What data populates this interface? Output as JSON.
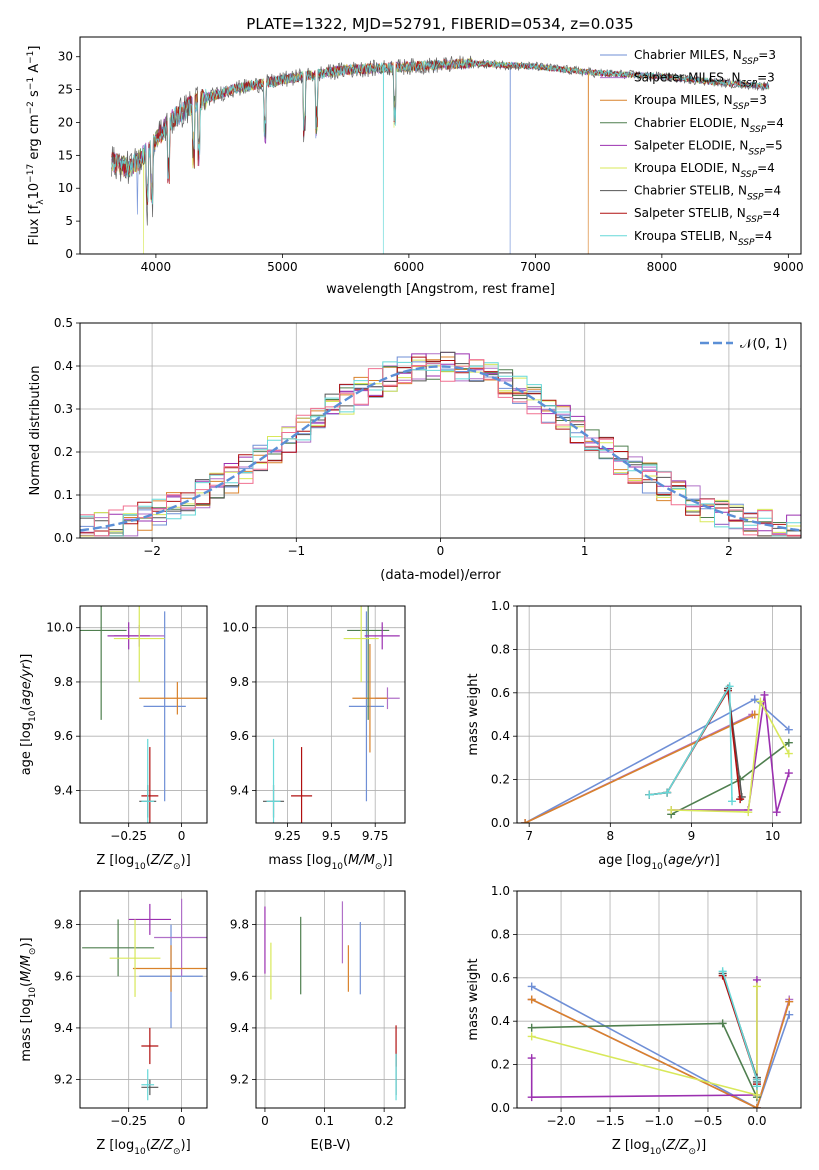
{
  "title": "PLATE=1322, MJD=52791, FIBERID=0534, z=0.035",
  "colors": {
    "Chabrier MILES": "#6f8fd6",
    "Salpeter MILES": "#b070c8",
    "Kroupa MILES": "#d9822b",
    "Chabrier ELODIE": "#4f7f4f",
    "Salpeter ELODIE": "#9b30b0",
    "Kroupa ELODIE": "#d8e85a",
    "Chabrier STELIB": "#555555",
    "Salpeter STELIB": "#b01010",
    "Kroupa STELIB": "#66d8d8",
    "normal": "#5b8fd6",
    "extra_hist": "#f07090"
  },
  "chart_data": [
    {
      "type": "line",
      "name": "spectrum",
      "title": "PLATE=1322, MJD=52791, FIBERID=0534, z=0.035",
      "xlabel": "wavelength [Angstrom, rest frame]",
      "ylabel": "Flux [f_λ 10^-17 erg cm^-2 s^-1 A^-1]",
      "xlim": [
        3400,
        9100
      ],
      "ylim": [
        0,
        33
      ],
      "xticks": [
        4000,
        5000,
        6000,
        7000,
        8000,
        9000
      ],
      "yticks": [
        0,
        5,
        10,
        15,
        20,
        25,
        30
      ],
      "grid": false,
      "legend_position": "right",
      "legend": [
        {
          "label": "Chabrier MILES, N",
          "sub": "SSP",
          "post": "=3"
        },
        {
          "label": "Salpeter MILES, N",
          "sub": "SSP",
          "post": "=3"
        },
        {
          "label": "Kroupa MILES, N",
          "sub": "SSP",
          "post": "=3"
        },
        {
          "label": "Chabrier ELODIE, N",
          "sub": "SSP",
          "post": "=4"
        },
        {
          "label": "Salpeter ELODIE, N",
          "sub": "SSP",
          "post": "=5"
        },
        {
          "label": "Kroupa ELODIE, N",
          "sub": "SSP",
          "post": "=4"
        },
        {
          "label": "Chabrier STELIB, N",
          "sub": "SSP",
          "post": "=4"
        },
        {
          "label": "Salpeter STELIB, N",
          "sub": "SSP",
          "post": "=4"
        },
        {
          "label": "Kroupa STELIB, N",
          "sub": "SSP",
          "post": "=4"
        }
      ],
      "continuum_anchors": [
        [
          3650,
          14
        ],
        [
          3800,
          13
        ],
        [
          3950,
          16
        ],
        [
          4100,
          20
        ],
        [
          4300,
          23
        ],
        [
          4600,
          25
        ],
        [
          5000,
          26.5
        ],
        [
          5500,
          28
        ],
        [
          6000,
          28.5
        ],
        [
          6500,
          29
        ],
        [
          7000,
          28.5
        ],
        [
          7500,
          27.5
        ],
        [
          8000,
          27
        ],
        [
          8500,
          26
        ],
        [
          8850,
          25.5
        ]
      ],
      "drops": [
        {
          "series": "Kroupa MILES",
          "x": 7420,
          "to": 0
        },
        {
          "series": "Kroupa STELIB",
          "x": 5800,
          "to": 0
        },
        {
          "series": "Chabrier MILES",
          "x": 6800,
          "to": 0
        },
        {
          "series": "Kroupa ELODIE",
          "x": 3900,
          "to": 0
        }
      ]
    },
    {
      "type": "bar",
      "name": "residual-histogram",
      "xlabel": "(data-model)/error",
      "ylabel": "Normed distribution",
      "xlim": [
        -2.5,
        2.5
      ],
      "ylim": [
        0,
        0.5
      ],
      "xticks": [
        -2,
        -1,
        0,
        1,
        2
      ],
      "yticks": [
        0.0,
        0.1,
        0.2,
        0.3,
        0.4,
        0.5
      ],
      "grid": true,
      "bin_width": 0.1,
      "legend_position": "top-right",
      "legend_label": "N(0,1)",
      "series_peaks": [
        0.46,
        0.45,
        0.48,
        0.44,
        0.43,
        0.42,
        0.45,
        0.41,
        0.44
      ]
    },
    {
      "type": "scatter",
      "name": "age-vs-Z",
      "xlabel": "Z [log10(Z/Z_sun)]",
      "ylabel": "age [log10(age/yr)]",
      "xlim": [
        -0.48,
        0.12
      ],
      "ylim": [
        9.28,
        10.08
      ],
      "xticks": [
        -0.25,
        0.0
      ],
      "yticks": [
        9.4,
        9.6,
        9.8,
        10.0
      ],
      "grid": true,
      "points": [
        {
          "series": "Chabrier MILES",
          "x": -0.08,
          "y": 9.71,
          "xerr": 0.1,
          "yerr": 0.35
        },
        {
          "series": "Salpeter MILES",
          "x": -0.2,
          "y": 9.97,
          "xerr": 0.12,
          "yerr": 0.04
        },
        {
          "series": "Kroupa MILES",
          "x": -0.02,
          "y": 9.74,
          "xerr": 0.18,
          "yerr": 0.06
        },
        {
          "series": "Chabrier ELODIE",
          "x": -0.38,
          "y": 9.99,
          "xerr": 0.12,
          "yerr": 0.33
        },
        {
          "series": "Salpeter ELODIE",
          "x": -0.25,
          "y": 9.97,
          "xerr": 0.1,
          "yerr": 0.05
        },
        {
          "series": "Kroupa ELODIE",
          "x": -0.2,
          "y": 9.96,
          "xerr": 0.12,
          "yerr": 0.16
        },
        {
          "series": "Chabrier STELIB",
          "x": -0.16,
          "y": 9.36,
          "xerr": 0.04,
          "yerr": 0.06
        },
        {
          "series": "Salpeter STELIB",
          "x": -0.15,
          "y": 9.38,
          "xerr": 0.04,
          "yerr": 0.18
        },
        {
          "series": "Kroupa STELIB",
          "x": -0.16,
          "y": 9.36,
          "xerr": 0.03,
          "yerr": 0.23
        }
      ]
    },
    {
      "type": "scatter",
      "name": "age-vs-mass",
      "xlabel": "mass [log10(M/M_sun)]",
      "ylabel": "",
      "xlim": [
        9.07,
        9.92
      ],
      "ylim": [
        9.28,
        10.08
      ],
      "xticks": [
        9.25,
        9.5,
        9.75
      ],
      "yticks": [
        9.4,
        9.6,
        9.8,
        10.0
      ],
      "grid": true,
      "points": [
        {
          "series": "Chabrier MILES",
          "x": 9.7,
          "y": 9.71,
          "xerr": 0.1,
          "yerr": 0.35
        },
        {
          "series": "Salpeter MILES",
          "x": 9.82,
          "y": 9.74,
          "xerr": 0.07,
          "yerr": 0.04
        },
        {
          "series": "Kroupa MILES",
          "x": 9.72,
          "y": 9.74,
          "xerr": 0.1,
          "yerr": 0.2
        },
        {
          "series": "Chabrier ELODIE",
          "x": 9.71,
          "y": 9.99,
          "xerr": 0.12,
          "yerr": 0.33
        },
        {
          "series": "Salpeter ELODIE",
          "x": 9.79,
          "y": 9.97,
          "xerr": 0.1,
          "yerr": 0.05
        },
        {
          "series": "Kroupa ELODIE",
          "x": 9.67,
          "y": 9.96,
          "xerr": 0.1,
          "yerr": 0.16
        },
        {
          "series": "Chabrier STELIB",
          "x": 9.17,
          "y": 9.36,
          "xerr": 0.06,
          "yerr": 0.06
        },
        {
          "series": "Salpeter STELIB",
          "x": 9.33,
          "y": 9.38,
          "xerr": 0.06,
          "yerr": 0.18
        },
        {
          "series": "Kroupa STELIB",
          "x": 9.17,
          "y": 9.36,
          "xerr": 0.04,
          "yerr": 0.23
        }
      ]
    },
    {
      "type": "line",
      "name": "mass-weight-vs-age",
      "xlabel": "age [log10(age/yr)]",
      "ylabel": "mass weight",
      "xlim": [
        6.85,
        10.35
      ],
      "ylim": [
        0,
        1
      ],
      "xticks": [
        7,
        8,
        9,
        10
      ],
      "yticks": [
        0.0,
        0.2,
        0.4,
        0.6,
        0.8,
        1.0
      ],
      "grid": true,
      "series": [
        {
          "name": "Chabrier MILES",
          "x": [
            6.95,
            9.78,
            10.2
          ],
          "y": [
            0.0,
            0.57,
            0.43
          ]
        },
        {
          "name": "Salpeter MILES",
          "x": [
            6.95,
            9.75
          ],
          "y": [
            0.0,
            0.5
          ]
        },
        {
          "name": "Kroupa MILES",
          "x": [
            6.95,
            9.78
          ],
          "y": [
            0.0,
            0.5
          ]
        },
        {
          "name": "Chabrier ELODIE",
          "x": [
            8.75,
            9.6,
            10.2
          ],
          "y": [
            0.04,
            0.2,
            0.37
          ]
        },
        {
          "name": "Salpeter ELODIE",
          "x": [
            8.75,
            9.7,
            9.9,
            10.05,
            10.2
          ],
          "y": [
            0.06,
            0.06,
            0.59,
            0.05,
            0.23
          ]
        },
        {
          "name": "Kroupa ELODIE",
          "x": [
            8.75,
            9.7,
            9.85,
            10.2
          ],
          "y": [
            0.06,
            0.05,
            0.56,
            0.32
          ]
        },
        {
          "name": "Chabrier STELIB",
          "x": [
            8.48,
            8.7,
            9.45,
            9.62
          ],
          "y": [
            0.13,
            0.14,
            0.62,
            0.12
          ]
        },
        {
          "name": "Salpeter STELIB",
          "x": [
            8.48,
            8.7,
            9.45,
            9.6
          ],
          "y": [
            0.13,
            0.14,
            0.61,
            0.11
          ]
        },
        {
          "name": "Kroupa STELIB",
          "x": [
            8.48,
            8.7,
            9.47,
            9.5
          ],
          "y": [
            0.13,
            0.14,
            0.63,
            0.1
          ]
        }
      ]
    },
    {
      "type": "scatter",
      "name": "mass-vs-Z",
      "xlabel": "Z [log10(Z/Z_sun)]",
      "ylabel": "mass [log10(M/M_sun)]",
      "xlim": [
        -0.48,
        0.12
      ],
      "ylim": [
        9.09,
        9.93
      ],
      "xticks": [
        -0.25,
        0.0
      ],
      "yticks": [
        9.2,
        9.4,
        9.6,
        9.8
      ],
      "grid": true,
      "points": [
        {
          "series": "Chabrier MILES",
          "x": -0.05,
          "y": 9.6,
          "xerr": 0.15,
          "yerr": 0.2
        },
        {
          "series": "Salpeter MILES",
          "x": 0.0,
          "y": 9.75,
          "xerr": 0.13,
          "yerr": 0.15
        },
        {
          "series": "Kroupa MILES",
          "x": -0.05,
          "y": 9.63,
          "xerr": 0.18,
          "yerr": 0.09
        },
        {
          "series": "Chabrier ELODIE",
          "x": -0.3,
          "y": 9.71,
          "xerr": 0.17,
          "yerr": 0.11
        },
        {
          "series": "Salpeter ELODIE",
          "x": -0.15,
          "y": 9.82,
          "xerr": 0.1,
          "yerr": 0.06
        },
        {
          "series": "Kroupa ELODIE",
          "x": -0.22,
          "y": 9.67,
          "xerr": 0.12,
          "yerr": 0.15
        },
        {
          "series": "Chabrier STELIB",
          "x": -0.15,
          "y": 9.17,
          "xerr": 0.04,
          "yerr": 0.03
        },
        {
          "series": "Salpeter STELIB",
          "x": -0.15,
          "y": 9.33,
          "xerr": 0.04,
          "yerr": 0.07
        },
        {
          "series": "Kroupa STELIB",
          "x": -0.16,
          "y": 9.18,
          "xerr": 0.03,
          "yerr": 0.06
        }
      ]
    },
    {
      "type": "scatter",
      "name": "mass-vs-EBV",
      "xlabel": "E(B-V)",
      "ylabel": "",
      "xlim": [
        -0.015,
        0.235
      ],
      "ylim": [
        9.09,
        9.93
      ],
      "xticks": [
        0.0,
        0.1,
        0.2
      ],
      "yticks": [
        9.2,
        9.4,
        9.6,
        9.8
      ],
      "grid": true,
      "points": [
        {
          "series": "Chabrier MILES",
          "x": 0.16,
          "y": 9.67,
          "yerr": 0.14
        },
        {
          "series": "Salpeter MILES",
          "x": 0.13,
          "y": 9.77,
          "yerr": 0.12
        },
        {
          "series": "Kroupa MILES",
          "x": 0.14,
          "y": 9.63,
          "yerr": 0.09
        },
        {
          "series": "Chabrier ELODIE",
          "x": 0.06,
          "y": 9.68,
          "yerr": 0.15
        },
        {
          "series": "Salpeter ELODIE",
          "x": 0.0,
          "y": 9.74,
          "yerr": 0.13
        },
        {
          "series": "Kroupa ELODIE",
          "x": 0.01,
          "y": 9.62,
          "yerr": 0.11
        },
        {
          "series": "Chabrier STELIB",
          "x": 0.22,
          "y": 9.22,
          "yerr": 0.08
        },
        {
          "series": "Salpeter STELIB",
          "x": 0.22,
          "y": 9.33,
          "yerr": 0.08
        },
        {
          "series": "Kroupa STELIB",
          "x": 0.22,
          "y": 9.21,
          "yerr": 0.09
        }
      ]
    },
    {
      "type": "line",
      "name": "mass-weight-vs-Z",
      "xlabel": "Z [log10(Z/Z_sun)]",
      "ylabel": "mass weight",
      "xlim": [
        -2.45,
        0.45
      ],
      "ylim": [
        0,
        1
      ],
      "xticks": [
        -2.0,
        -1.5,
        -1.0,
        -0.5,
        0.0
      ],
      "yticks": [
        0.0,
        0.2,
        0.4,
        0.6,
        0.8,
        1.0
      ],
      "grid": true,
      "series": [
        {
          "name": "Chabrier MILES",
          "x": [
            -2.3,
            0.0,
            0.33
          ],
          "y": [
            0.56,
            0.0,
            0.43
          ]
        },
        {
          "name": "Salpeter MILES",
          "x": [
            -2.3,
            0.0,
            0.33
          ],
          "y": [
            0.5,
            0.0,
            0.5
          ]
        },
        {
          "name": "Kroupa MILES",
          "x": [
            -2.3,
            0.0,
            0.33
          ],
          "y": [
            0.5,
            0.0,
            0.49
          ]
        },
        {
          "name": "Chabrier ELODIE",
          "x": [
            -2.3,
            -0.35,
            0.0
          ],
          "y": [
            0.37,
            0.39,
            0.05
          ]
        },
        {
          "name": "Salpeter ELODIE",
          "x": [
            -2.3,
            -2.3,
            0.0,
            0.0
          ],
          "y": [
            0.23,
            0.05,
            0.06,
            0.59
          ]
        },
        {
          "name": "Kroupa ELODIE",
          "x": [
            -2.3,
            0.0,
            0.0
          ],
          "y": [
            0.33,
            0.06,
            0.56
          ]
        },
        {
          "name": "Chabrier STELIB",
          "x": [
            -0.35,
            0.0,
            0.0
          ],
          "y": [
            0.62,
            0.14,
            0.12
          ]
        },
        {
          "name": "Salpeter STELIB",
          "x": [
            -0.35,
            0.0,
            0.0
          ],
          "y": [
            0.61,
            0.13,
            0.11
          ]
        },
        {
          "name": "Kroupa STELIB",
          "x": [
            -0.35,
            0.0,
            0.0
          ],
          "y": [
            0.63,
            0.13,
            0.1
          ]
        }
      ]
    }
  ]
}
